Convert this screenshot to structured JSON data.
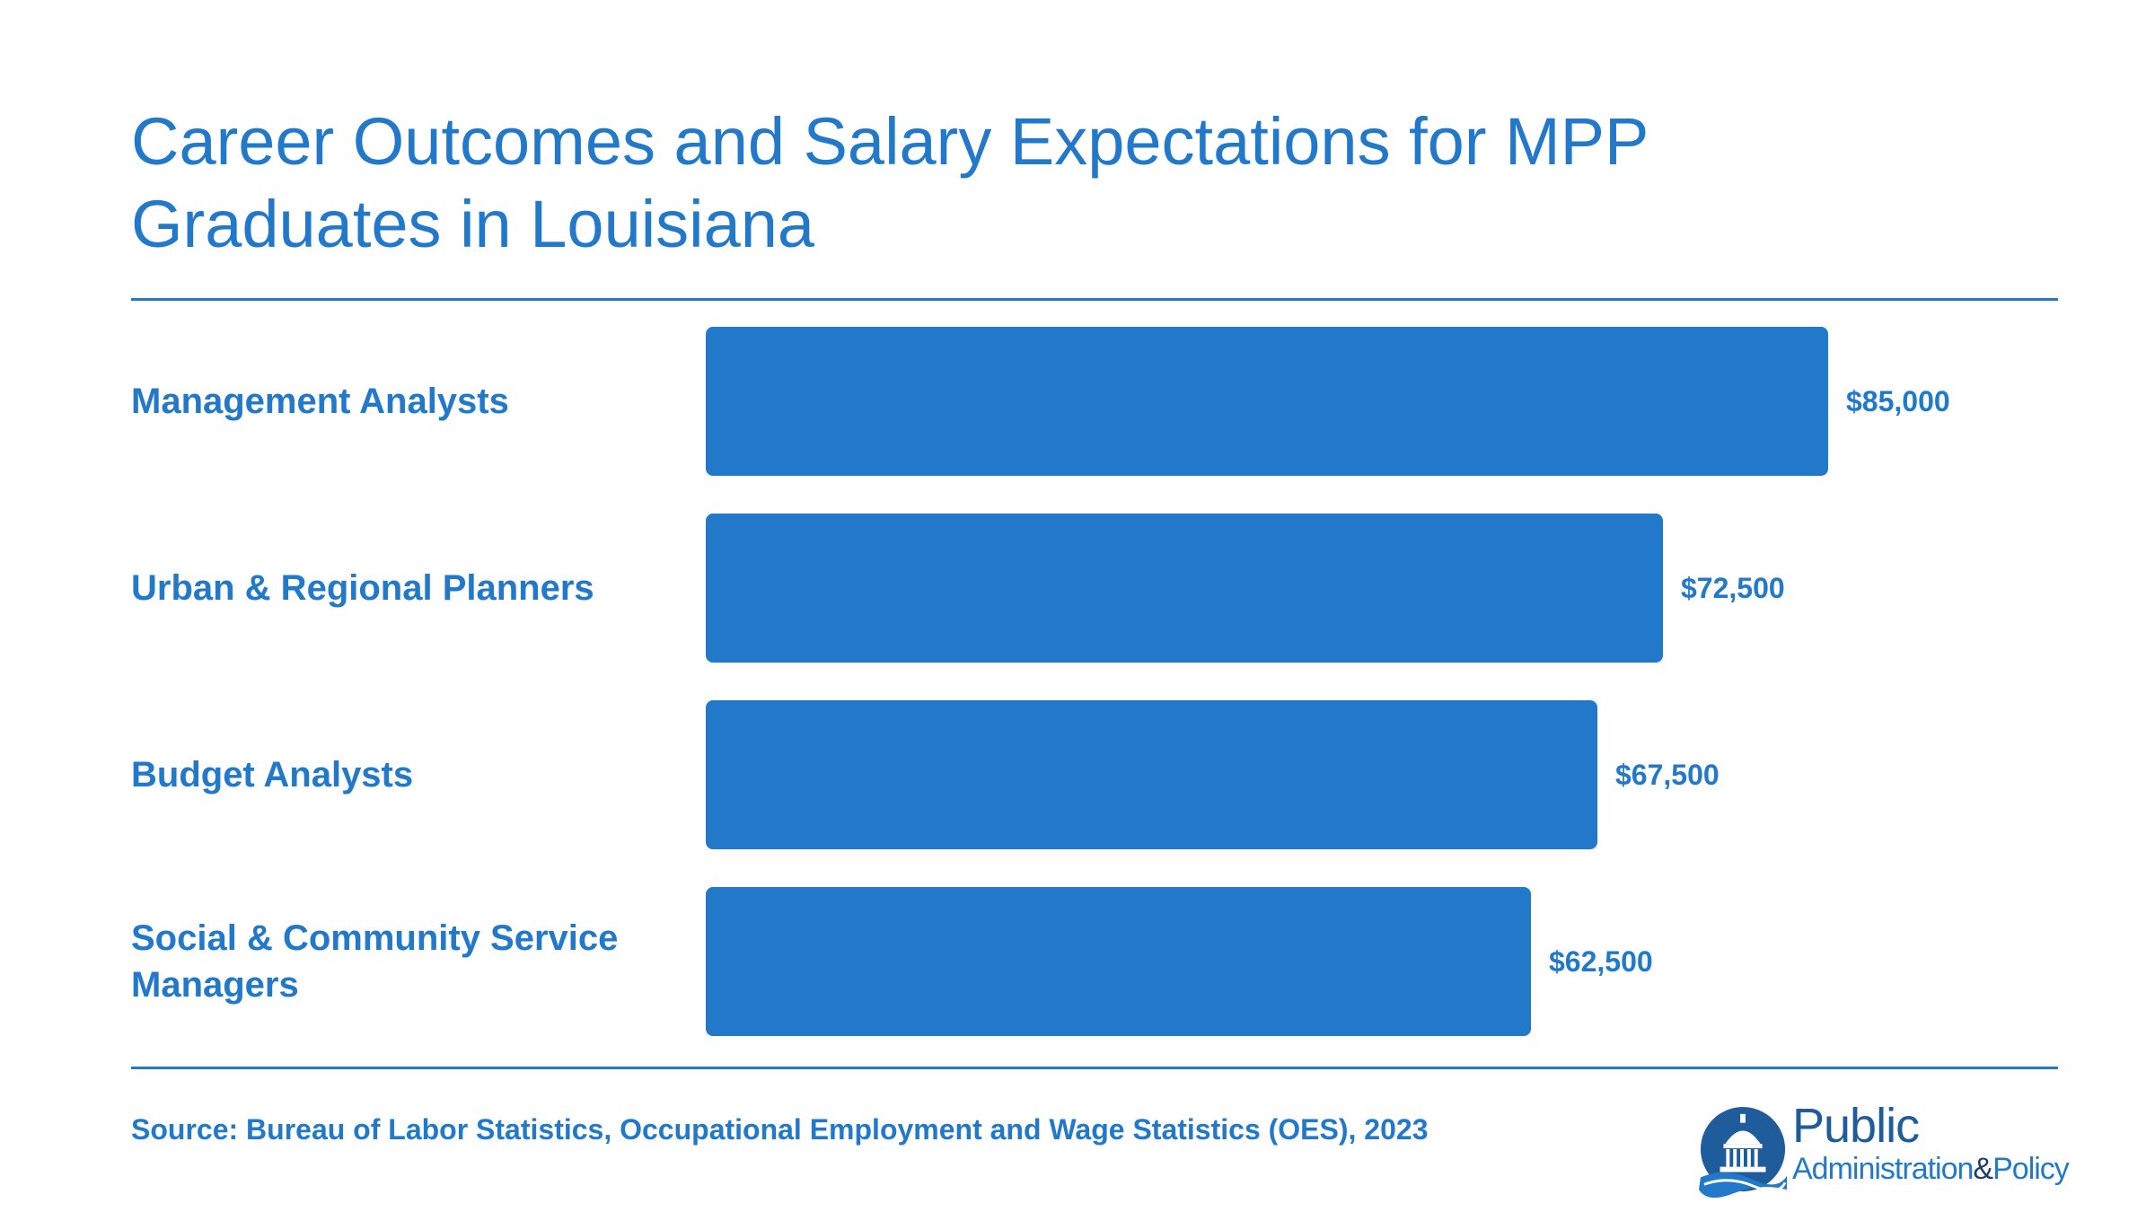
{
  "title": "Career Outcomes and Salary Expectations for MPP Graduates in Louisiana",
  "source": "Source: Bureau of Labor Statistics, Occupational Employment and Wage Statistics (OES), 2023",
  "logo": {
    "word1": "Public",
    "word2": "Administration",
    "amp": "&",
    "word3": "Policy"
  },
  "colors": {
    "accent": "#2279c9",
    "background": "#ffffff"
  },
  "chart_data": {
    "type": "bar",
    "orientation": "horizontal",
    "categories": [
      "Management Analysts",
      "Urban & Regional Planners",
      "Budget Analysts",
      "Social & Community Service Managers"
    ],
    "values": [
      85000,
      72500,
      67500,
      62500
    ],
    "value_labels": [
      "$85,000",
      "$72,500",
      "$67,500",
      "$62,500"
    ],
    "title": "Career Outcomes and Salary Expectations for MPP Graduates in Louisiana",
    "xlabel": "",
    "ylabel": "",
    "xlim": [
      0,
      85000
    ],
    "grid": false,
    "legend": "none"
  }
}
